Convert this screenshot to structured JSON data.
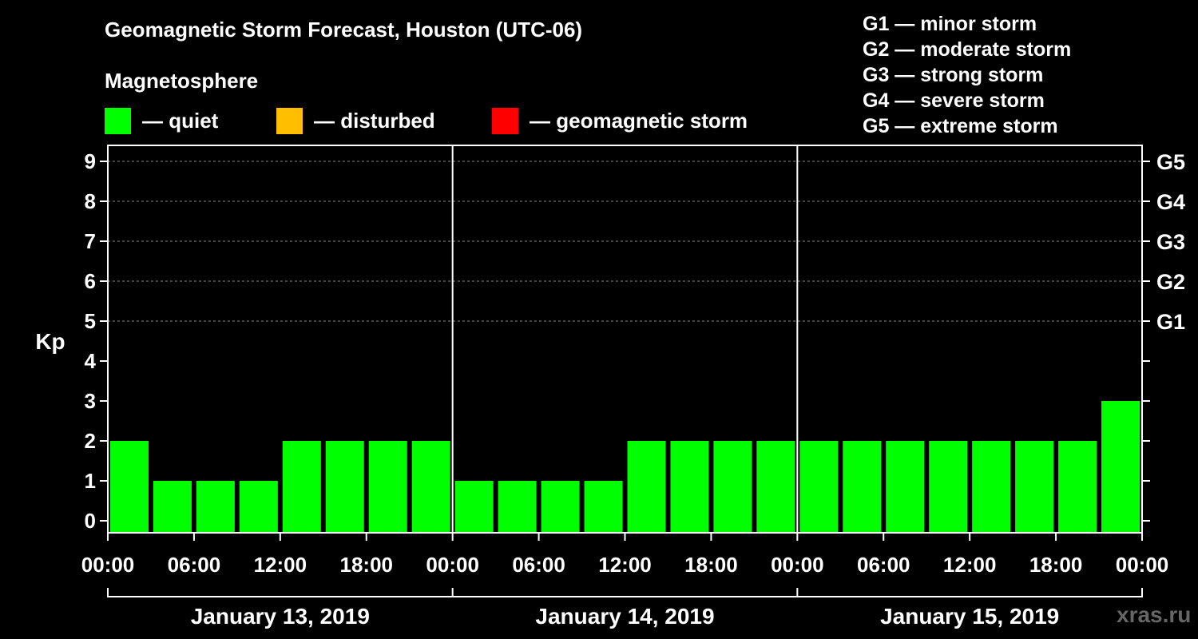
{
  "chart_data": {
    "type": "bar",
    "title": "Geomagnetic Storm Forecast, Houston (UTC-06)",
    "legend_title": "Magnetosphere",
    "legend": [
      {
        "label": "— quiet",
        "color": "#00ff00"
      },
      {
        "label": "— disturbed",
        "color": "#ffbf00"
      },
      {
        "label": "— geomagnetic storm",
        "color": "#ff0000"
      }
    ],
    "storm_scale": [
      "G1 — minor storm",
      "G2 — moderate storm",
      "G3 — strong storm",
      "G4 — severe storm",
      "G5 — extreme storm"
    ],
    "ylabel": "Kp",
    "ylim": [
      0,
      9
    ],
    "y_ticks": [
      "0",
      "1",
      "2",
      "3",
      "4",
      "5",
      "6",
      "7",
      "8",
      "9"
    ],
    "right_ticks": [
      {
        "value": 5,
        "label": "G1"
      },
      {
        "value": 6,
        "label": "G2"
      },
      {
        "value": 7,
        "label": "G3"
      },
      {
        "value": 8,
        "label": "G4"
      },
      {
        "value": 9,
        "label": "G5"
      }
    ],
    "grid": true,
    "x_tick_labels": [
      "00:00",
      "06:00",
      "12:00",
      "18:00",
      "00:00",
      "06:00",
      "12:00",
      "18:00",
      "00:00",
      "06:00",
      "12:00",
      "18:00",
      "00:00"
    ],
    "days": [
      "January 13, 2019",
      "January 14, 2019",
      "January 15, 2019"
    ],
    "interval_hours": 3,
    "values": [
      2,
      1,
      1,
      1,
      2,
      2,
      2,
      2,
      1,
      1,
      1,
      1,
      2,
      2,
      2,
      2,
      2,
      2,
      2,
      2,
      2,
      2,
      2,
      3
    ],
    "bar_color": "#00ff00"
  },
  "watermark": "xras.ru"
}
